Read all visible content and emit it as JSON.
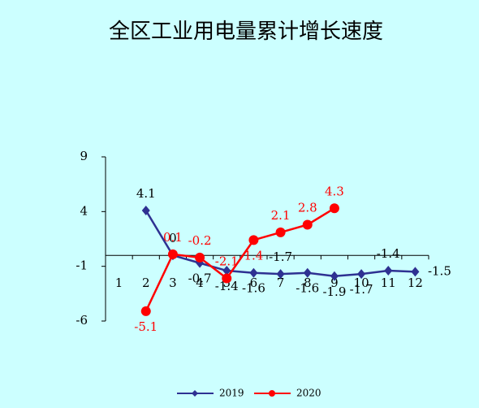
{
  "chart_data": {
    "type": "line",
    "title": "全区工业用电量累计增长速度",
    "categories": [
      "1",
      "2",
      "3",
      "4",
      "5",
      "6",
      "7",
      "8",
      "9",
      "10",
      "11",
      "12"
    ],
    "series": [
      {
        "name": "2019",
        "color": "#2e3192",
        "marker": "diamond",
        "values": [
          null,
          4.1,
          0,
          -0.7,
          -1.4,
          -1.6,
          -1.7,
          -1.6,
          -1.9,
          -1.7,
          -1.4,
          -1.5
        ]
      },
      {
        "name": "2020",
        "color": "#ff0000",
        "marker": "circle",
        "values": [
          null,
          -5.1,
          0.1,
          -0.2,
          -2.1,
          1.4,
          2.1,
          2.8,
          4.3,
          null,
          null,
          null
        ]
      }
    ],
    "ylim": [
      -6,
      9
    ],
    "yticks": [
      -6,
      -1,
      4,
      9
    ],
    "legend": "bottom"
  }
}
